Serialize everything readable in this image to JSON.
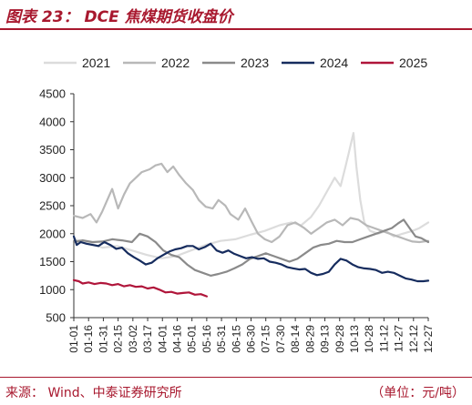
{
  "header": {
    "title": "图表 23： DCE 焦煤期货收盘价"
  },
  "footer": {
    "source": "来源：  Wind、中泰证券研究所",
    "unit": "（单位：元/吨）"
  },
  "colors": {
    "brand": "#a8182e",
    "s2021": "#dcdcdc",
    "s2022": "#b8b8b8",
    "s2023": "#8a8a8a",
    "s2024": "#162c5e",
    "s2025": "#b0153a"
  },
  "chart_data": {
    "type": "line",
    "title": "DCE 焦煤期货收盘价",
    "ylim": [
      500,
      4500
    ],
    "yticks": [
      500,
      1000,
      1500,
      2000,
      2500,
      3000,
      3500,
      4000,
      4500
    ],
    "xticks": [
      "01-01",
      "01-16",
      "01-31",
      "02-15",
      "03-02",
      "03-17",
      "04-01",
      "04-16",
      "05-01",
      "05-16",
      "05-31",
      "06-15",
      "06-30",
      "07-15",
      "07-30",
      "08-14",
      "08-29",
      "09-13",
      "09-28",
      "10-13",
      "10-28",
      "11-12",
      "11-27",
      "12-12",
      "12-27"
    ],
    "x_day_range": [
      1,
      361
    ],
    "legend_position": "top",
    "grid": false,
    "series": [
      {
        "name": "2021",
        "color": "#dcdcdc",
        "points": [
          [
            1,
            1900
          ],
          [
            15,
            1850
          ],
          [
            30,
            1750
          ],
          [
            45,
            1780
          ],
          [
            60,
            1700
          ],
          [
            75,
            1620
          ],
          [
            90,
            1560
          ],
          [
            105,
            1600
          ],
          [
            120,
            1700
          ],
          [
            135,
            1800
          ],
          [
            150,
            1870
          ],
          [
            165,
            1900
          ],
          [
            180,
            1980
          ],
          [
            195,
            2050
          ],
          [
            210,
            2150
          ],
          [
            222,
            2200
          ],
          [
            232,
            2150
          ],
          [
            242,
            2300
          ],
          [
            250,
            2500
          ],
          [
            258,
            2750
          ],
          [
            266,
            3000
          ],
          [
            272,
            2850
          ],
          [
            277,
            3200
          ],
          [
            281,
            3500
          ],
          [
            285,
            3800
          ],
          [
            288,
            3200
          ],
          [
            292,
            2600
          ],
          [
            296,
            2200
          ],
          [
            302,
            2050
          ],
          [
            310,
            2000
          ],
          [
            318,
            2050
          ],
          [
            326,
            1950
          ],
          [
            335,
            2000
          ],
          [
            345,
            2050
          ],
          [
            352,
            2100
          ],
          [
            361,
            2200
          ]
        ]
      },
      {
        "name": "2022",
        "color": "#b8b8b8",
        "points": [
          [
            1,
            2320
          ],
          [
            10,
            2280
          ],
          [
            18,
            2350
          ],
          [
            24,
            2200
          ],
          [
            30,
            2400
          ],
          [
            35,
            2600
          ],
          [
            40,
            2800
          ],
          [
            46,
            2450
          ],
          [
            52,
            2700
          ],
          [
            58,
            2900
          ],
          [
            64,
            3000
          ],
          [
            70,
            3100
          ],
          [
            78,
            3150
          ],
          [
            84,
            3220
          ],
          [
            90,
            3250
          ],
          [
            96,
            3100
          ],
          [
            102,
            3200
          ],
          [
            108,
            3050
          ],
          [
            115,
            2900
          ],
          [
            122,
            2780
          ],
          [
            128,
            2600
          ],
          [
            135,
            2480
          ],
          [
            142,
            2450
          ],
          [
            148,
            2600
          ],
          [
            155,
            2500
          ],
          [
            160,
            2350
          ],
          [
            168,
            2250
          ],
          [
            175,
            2450
          ],
          [
            182,
            2200
          ],
          [
            188,
            2000
          ],
          [
            195,
            1900
          ],
          [
            202,
            1850
          ],
          [
            210,
            1950
          ],
          [
            218,
            2150
          ],
          [
            226,
            2200
          ],
          [
            235,
            2100
          ],
          [
            242,
            2000
          ],
          [
            250,
            2100
          ],
          [
            258,
            2200
          ],
          [
            266,
            2250
          ],
          [
            274,
            2150
          ],
          [
            282,
            2280
          ],
          [
            290,
            2250
          ],
          [
            298,
            2150
          ],
          [
            306,
            2100
          ],
          [
            314,
            2050
          ],
          [
            322,
            2000
          ],
          [
            330,
            1950
          ],
          [
            338,
            1900
          ],
          [
            345,
            1860
          ],
          [
            352,
            1850
          ],
          [
            361,
            1870
          ]
        ]
      },
      {
        "name": "2023",
        "color": "#8a8a8a",
        "points": [
          [
            1,
            1850
          ],
          [
            10,
            1880
          ],
          [
            20,
            1850
          ],
          [
            30,
            1860
          ],
          [
            40,
            1900
          ],
          [
            50,
            1880
          ],
          [
            60,
            1850
          ],
          [
            68,
            2000
          ],
          [
            76,
            1950
          ],
          [
            84,
            1850
          ],
          [
            92,
            1700
          ],
          [
            100,
            1620
          ],
          [
            108,
            1580
          ],
          [
            116,
            1450
          ],
          [
            124,
            1350
          ],
          [
            132,
            1300
          ],
          [
            140,
            1250
          ],
          [
            148,
            1280
          ],
          [
            156,
            1320
          ],
          [
            164,
            1380
          ],
          [
            172,
            1450
          ],
          [
            180,
            1550
          ],
          [
            188,
            1600
          ],
          [
            196,
            1650
          ],
          [
            204,
            1600
          ],
          [
            212,
            1550
          ],
          [
            220,
            1500
          ],
          [
            228,
            1550
          ],
          [
            236,
            1650
          ],
          [
            244,
            1750
          ],
          [
            252,
            1800
          ],
          [
            260,
            1820
          ],
          [
            268,
            1870
          ],
          [
            276,
            1850
          ],
          [
            284,
            1850
          ],
          [
            292,
            1900
          ],
          [
            300,
            1950
          ],
          [
            308,
            2000
          ],
          [
            316,
            2050
          ],
          [
            324,
            2100
          ],
          [
            330,
            2180
          ],
          [
            336,
            2250
          ],
          [
            342,
            2100
          ],
          [
            348,
            1950
          ],
          [
            354,
            1920
          ],
          [
            361,
            1850
          ]
        ]
      },
      {
        "name": "2024",
        "color": "#162c5e",
        "points": [
          [
            1,
            1950
          ],
          [
            4,
            1800
          ],
          [
            8,
            1850
          ],
          [
            14,
            1820
          ],
          [
            20,
            1800
          ],
          [
            26,
            1780
          ],
          [
            32,
            1850
          ],
          [
            38,
            1800
          ],
          [
            44,
            1730
          ],
          [
            50,
            1750
          ],
          [
            56,
            1650
          ],
          [
            62,
            1580
          ],
          [
            68,
            1520
          ],
          [
            74,
            1450
          ],
          [
            80,
            1480
          ],
          [
            86,
            1560
          ],
          [
            92,
            1620
          ],
          [
            98,
            1680
          ],
          [
            104,
            1720
          ],
          [
            110,
            1740
          ],
          [
            116,
            1780
          ],
          [
            122,
            1780
          ],
          [
            128,
            1720
          ],
          [
            134,
            1760
          ],
          [
            140,
            1820
          ],
          [
            146,
            1700
          ],
          [
            152,
            1660
          ],
          [
            158,
            1700
          ],
          [
            164,
            1640
          ],
          [
            170,
            1600
          ],
          [
            176,
            1560
          ],
          [
            182,
            1580
          ],
          [
            188,
            1550
          ],
          [
            194,
            1560
          ],
          [
            200,
            1500
          ],
          [
            206,
            1480
          ],
          [
            212,
            1450
          ],
          [
            218,
            1400
          ],
          [
            224,
            1380
          ],
          [
            230,
            1360
          ],
          [
            236,
            1370
          ],
          [
            242,
            1300
          ],
          [
            248,
            1260
          ],
          [
            254,
            1280
          ],
          [
            260,
            1320
          ],
          [
            266,
            1450
          ],
          [
            272,
            1550
          ],
          [
            278,
            1520
          ],
          [
            284,
            1450
          ],
          [
            290,
            1400
          ],
          [
            296,
            1380
          ],
          [
            302,
            1370
          ],
          [
            308,
            1350
          ],
          [
            314,
            1300
          ],
          [
            320,
            1320
          ],
          [
            326,
            1300
          ],
          [
            332,
            1250
          ],
          [
            338,
            1200
          ],
          [
            344,
            1180
          ],
          [
            350,
            1150
          ],
          [
            356,
            1150
          ],
          [
            361,
            1160
          ]
        ]
      },
      {
        "name": "2025",
        "color": "#b0153a",
        "points": [
          [
            1,
            1170
          ],
          [
            6,
            1150
          ],
          [
            10,
            1110
          ],
          [
            16,
            1130
          ],
          [
            22,
            1100
          ],
          [
            28,
            1120
          ],
          [
            34,
            1110
          ],
          [
            40,
            1080
          ],
          [
            46,
            1100
          ],
          [
            52,
            1060
          ],
          [
            58,
            1080
          ],
          [
            64,
            1050
          ],
          [
            70,
            1060
          ],
          [
            76,
            1020
          ],
          [
            82,
            1040
          ],
          [
            88,
            1000
          ],
          [
            94,
            950
          ],
          [
            100,
            960
          ],
          [
            106,
            930
          ],
          [
            112,
            940
          ],
          [
            118,
            950
          ],
          [
            124,
            910
          ],
          [
            130,
            920
          ],
          [
            136,
            880
          ]
        ]
      }
    ]
  }
}
